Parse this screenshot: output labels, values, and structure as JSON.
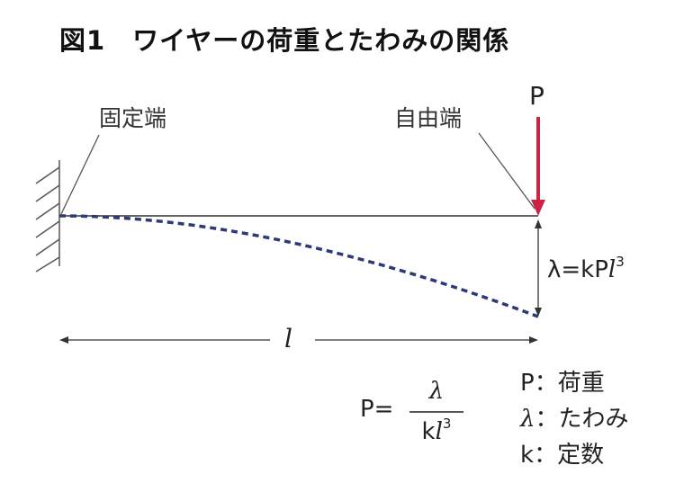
{
  "title": "図1　ワイヤーの荷重とたわみの関係",
  "labels": {
    "fixed_end": "固定端",
    "free_end": "自由端",
    "load_symbol": "P",
    "length_symbol": "l"
  },
  "deflection_formula": {
    "lhs": "λ=kP",
    "var": "l",
    "exp": "3"
  },
  "load_formula": {
    "lhs": "P=",
    "numerator": "λ",
    "denominator_k": "k",
    "denominator_var": "l",
    "denominator_exp": "3"
  },
  "legend": [
    {
      "symbol": "P",
      "sep": "：",
      "meaning": "荷重"
    },
    {
      "symbol": "λ",
      "sep": "：",
      "meaning": "たわみ"
    },
    {
      "symbol": "k",
      "sep": "：",
      "meaning": "定数"
    }
  ],
  "colors": {
    "load_arrow": "#cc2244",
    "deflection_curve": "#2c3a78",
    "line": "#444444"
  }
}
